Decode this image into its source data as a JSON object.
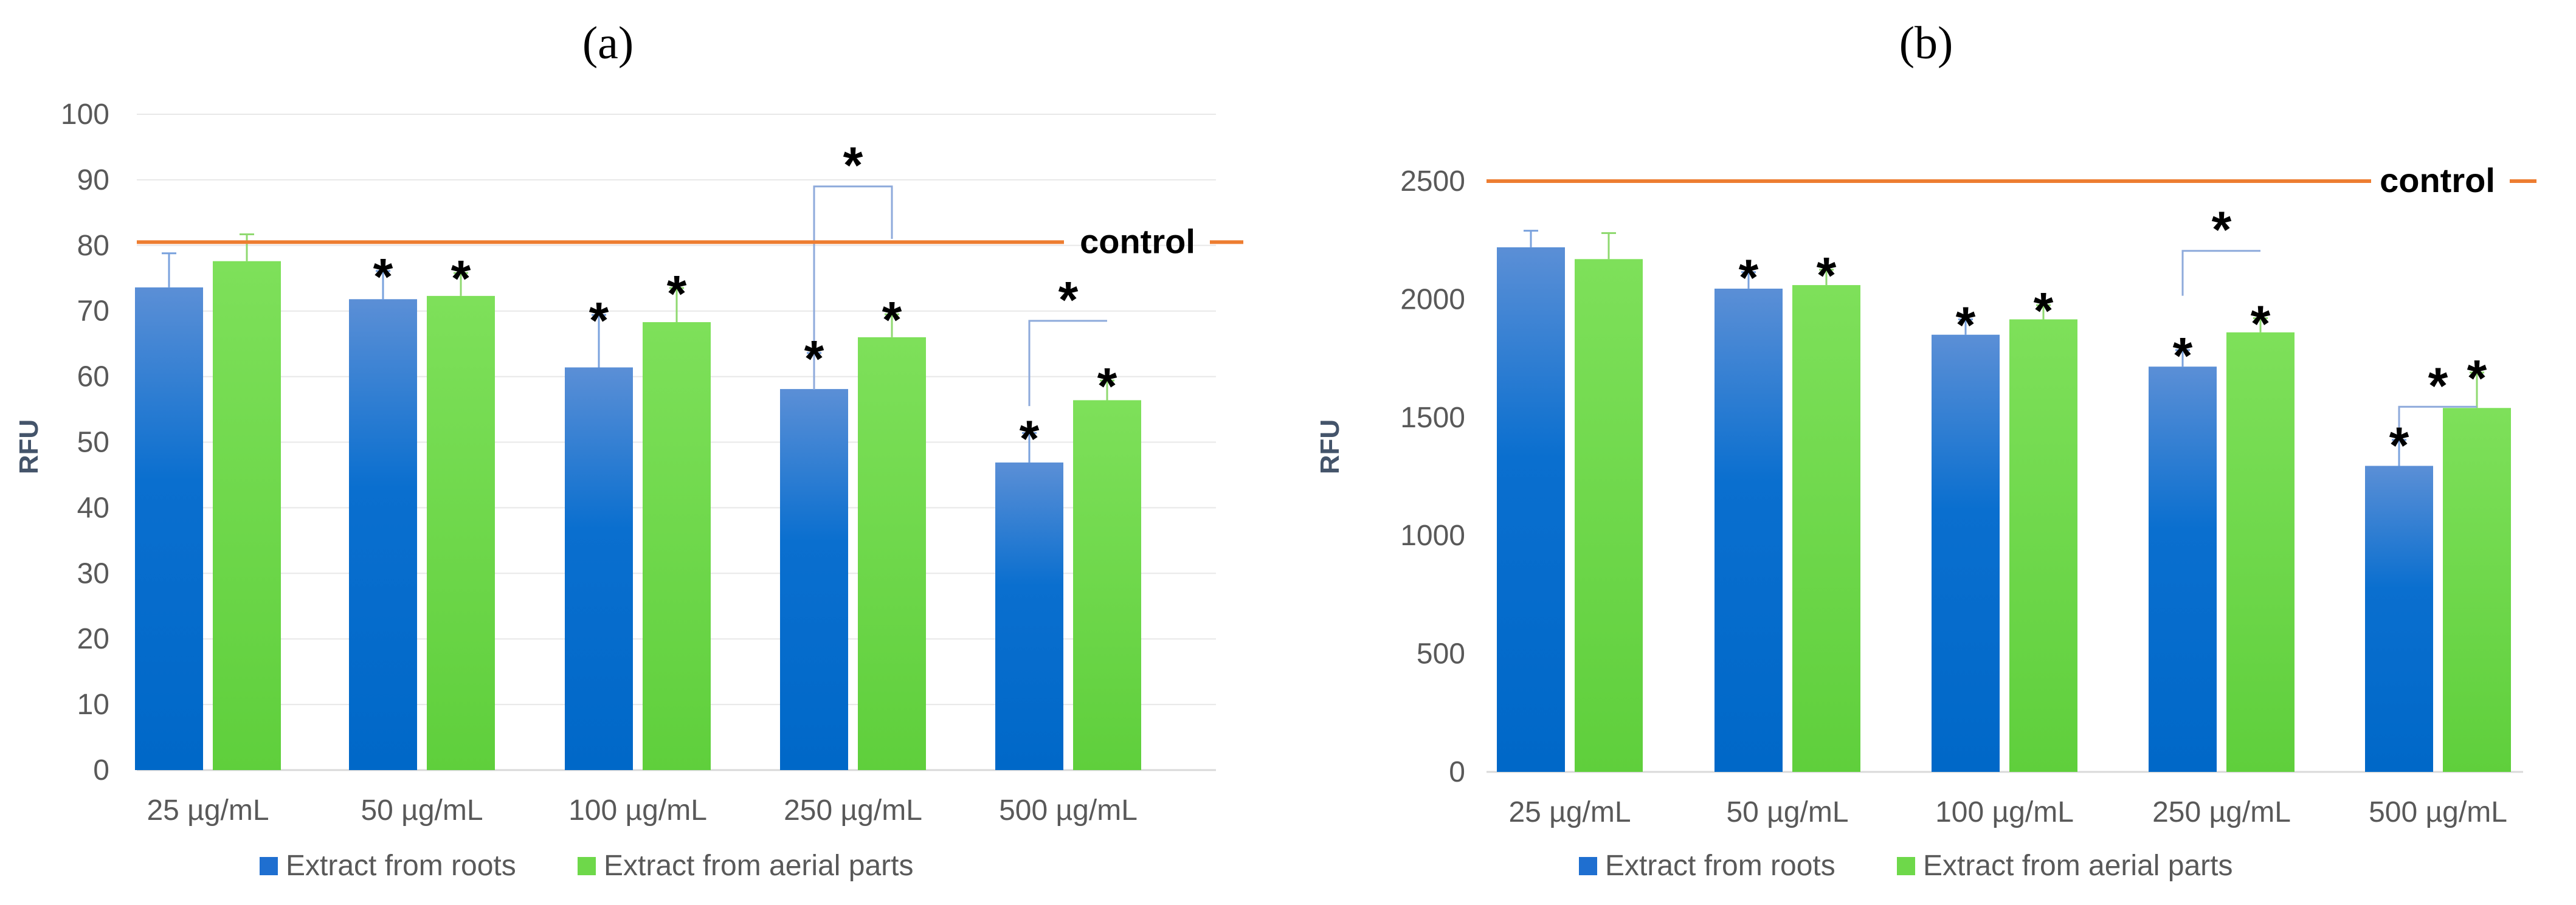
{
  "figure": {
    "panel_labels": [
      "(a)",
      "(b)"
    ]
  },
  "legend": {
    "roots_label": "Extract from roots",
    "aerial_label": "Extract from aerial parts"
  },
  "colors": {
    "roots_top": "#5b8fd6",
    "roots_bottom": "#0068c8",
    "aerial_top": "#7ee05a",
    "aerial_bottom": "#5fcf3c",
    "control_line": "#ed7d31",
    "grid": "#e8e8e8",
    "bracket": "#8eaadb"
  },
  "significance_marker": "*",
  "chart_data": [
    {
      "type": "bar",
      "panel": "(a)",
      "title": "",
      "xlabel": "",
      "ylabel": "RFU",
      "ylim": [
        0,
        100
      ],
      "yticks": [
        0,
        10,
        20,
        30,
        40,
        50,
        60,
        70,
        80,
        90,
        100
      ],
      "grid": true,
      "legend_position": "bottom",
      "categories": [
        "25 µg/mL",
        "50 µg/mL",
        "100 µg/mL",
        "250 µg/mL",
        "500 µg/mL"
      ],
      "series": [
        {
          "name": "Extract from roots",
          "values": [
            73.6,
            71.8,
            61.4,
            58.1,
            46.9
          ],
          "errors": [
            5.2,
            4.3,
            8.0,
            5.5,
            4.5
          ],
          "significant": [
            false,
            true,
            true,
            true,
            true
          ]
        },
        {
          "name": "Extract from aerial parts",
          "values": [
            77.6,
            72.3,
            68.3,
            66.0,
            56.4
          ],
          "errors": [
            4.1,
            3.5,
            5.2,
            3.5,
            3.0
          ],
          "significant": [
            false,
            true,
            true,
            true,
            true
          ]
        }
      ],
      "control": {
        "label": "control",
        "value": 80.5
      },
      "comparison_brackets": [
        {
          "category_index": 3,
          "left_value": 58,
          "right_value": 81,
          "top_value": 89
        },
        {
          "category_index": 4,
          "left_value": 55.5,
          "right_value": 68.5,
          "top_value": 68.5
        }
      ]
    },
    {
      "type": "bar",
      "panel": "(b)",
      "title": "",
      "xlabel": "",
      "ylabel": "RFU",
      "ylim": [
        0,
        2500
      ],
      "yticks": [
        0,
        500,
        1000,
        1500,
        2000,
        2500
      ],
      "grid": false,
      "legend_position": "bottom",
      "categories": [
        "25 µg/mL",
        "50 µg/mL",
        "100 µg/mL",
        "250 µg/mL",
        "500 µg/mL"
      ],
      "series": [
        {
          "name": "Extract from roots",
          "values": [
            2220,
            2045,
            1850,
            1715,
            1295
          ],
          "errors": [
            70,
            70,
            65,
            70,
            110
          ],
          "significant": [
            false,
            true,
            true,
            true,
            true
          ]
        },
        {
          "name": "Extract from aerial parts",
          "values": [
            2170,
            2060,
            1915,
            1860,
            1540
          ],
          "errors": [
            110,
            65,
            60,
            60,
            150
          ],
          "significant": [
            false,
            true,
            true,
            true,
            true
          ]
        }
      ],
      "control": {
        "label": "control",
        "value": 2500
      },
      "comparison_brackets": [
        {
          "category_index": 3,
          "left_value": 2015,
          "right_value": 2205,
          "top_value": 2205
        },
        {
          "category_index": 4,
          "left_value": 1425,
          "right_value": 1545,
          "top_value": 1545
        }
      ]
    }
  ]
}
